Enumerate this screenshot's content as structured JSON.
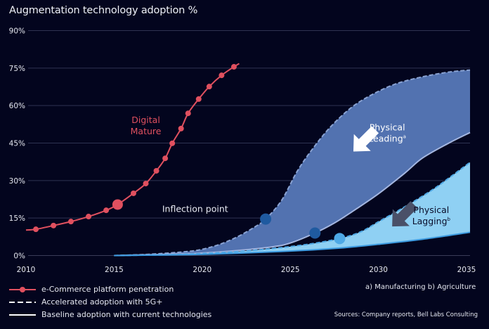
{
  "chart_data": {
    "type": "line",
    "title": "Augmentation technology adoption %",
    "xlabel": "",
    "ylabel": "",
    "xlim": [
      2010,
      2035
    ],
    "ylim": [
      0,
      90
    ],
    "x_ticks": [
      "2010",
      "2015",
      "2020",
      "2025",
      "2030",
      "2035"
    ],
    "x_tick_values": [
      2010,
      2015,
      2020,
      2025,
      2030,
      2035
    ],
    "y_ticks": [
      "0%",
      "15%",
      "30%",
      "45%",
      "60%",
      "75%",
      "90%"
    ],
    "y_tick_values": [
      0,
      15,
      30,
      45,
      60,
      75,
      90
    ],
    "grid": true,
    "series": [
      {
        "name": "e-Commerce platform penetration",
        "style": "line-markers",
        "color": "#e0505f",
        "x": [
          2010.56,
          2011.56,
          2012.55,
          2013.55,
          2014.55,
          2015.2,
          2016.1,
          2016.8,
          2017.4,
          2017.9,
          2018.3,
          2018.8,
          2019.2,
          2019.8,
          2020.4,
          2021.1,
          2021.8
        ],
        "y": [
          10.5,
          12.0,
          13.6,
          15.6,
          18.1,
          20.4,
          24.9,
          28.8,
          33.9,
          38.9,
          44.9,
          50.8,
          56.9,
          62.6,
          67.6,
          72.1,
          75.5
        ],
        "line_start": [
          2010,
          10.2
        ],
        "line_end": [
          2022.1,
          76.8
        ],
        "highlight_index": 5
      },
      {
        "name": "Physical Leading - Accelerated adoption with 5G+",
        "style": "dashed",
        "color": "#8aa3d3",
        "x": [
          2015,
          2017,
          2019,
          2020,
          2021,
          2022,
          2023,
          2023.6,
          2024.5,
          2025.4,
          2026.3,
          2027.3,
          2028.5,
          2029.7,
          2031,
          2032.5,
          2034,
          2035.2
        ],
        "y": [
          0,
          0.5,
          1.5,
          2.5,
          4.5,
          7.5,
          11.5,
          14.6,
          22,
          33.8,
          43,
          51.6,
          59.4,
          64.6,
          68.7,
          71.5,
          73.4,
          74.2
        ]
      },
      {
        "name": "Physical Leading - Baseline adoption with current technologies",
        "style": "solid",
        "color": "#a4b6e0",
        "x": [
          2015,
          2018,
          2020,
          2022,
          2024,
          2025,
          2026.4,
          2027.5,
          2028.5,
          2030,
          2031.5,
          2032.5,
          2034,
          2035.2
        ],
        "y": [
          0,
          0.5,
          1,
          2,
          3.5,
          5,
          9,
          13,
          17.5,
          24.7,
          33,
          39,
          45,
          49.2
        ]
      },
      {
        "name": "Physical Lagging - Accelerated adoption with 5G+",
        "style": "dashed",
        "color": "#4ea9e6",
        "x": [
          2015,
          2018,
          2020,
          2022,
          2024,
          2026,
          2027.8,
          2029,
          2030,
          2031.5,
          2033,
          2034,
          2035.2
        ],
        "y": [
          0,
          0.3,
          0.8,
          1.6,
          2.8,
          4.5,
          6.8,
          9.5,
          13.5,
          19.5,
          26,
          31,
          37.3
        ]
      },
      {
        "name": "Physical Lagging - Baseline adoption with current technologies",
        "style": "solid",
        "color": "#3d9be0",
        "x": [
          2015,
          2020,
          2025,
          2027.8,
          2030,
          2032.5,
          2035.2
        ],
        "y": [
          0,
          0.5,
          1.8,
          3,
          4.5,
          6.5,
          9.3
        ]
      }
    ],
    "bands": [
      {
        "name": "Physical Leading",
        "superscript": "a",
        "fill": "#5272b0",
        "upper": "Physical Leading - Accelerated adoption with 5G+",
        "lower": "Physical Leading - Baseline adoption with current technologies"
      },
      {
        "name": "Physical Lagging",
        "superscript": "b",
        "fill": "#8fd0f3",
        "upper": "Physical Lagging - Accelerated adoption with 5G+",
        "lower": "Physical Lagging - Baseline adoption with current technologies"
      }
    ],
    "markers": [
      {
        "label": "Inflection point",
        "x": 2023.6,
        "y": 14.6,
        "color": "#1f5aa0"
      },
      {
        "label": "",
        "x": 2026.4,
        "y": 9.0,
        "color": "#1f5aa0"
      },
      {
        "label": "",
        "x": 2027.8,
        "y": 6.8,
        "color": "#4ea9e6"
      }
    ],
    "annotations": [
      {
        "text_lines": [
          "Digital",
          "Mature"
        ],
        "color": "#e0505f",
        "x": 2016.8,
        "y": 53
      },
      {
        "text_lines": [
          "Physical",
          "Leading"
        ],
        "superscript": "a",
        "color": "#ffffff",
        "x": 2030.5,
        "y": 50
      },
      {
        "text_lines": [
          "Physical",
          "Lagging"
        ],
        "superscript": "b",
        "color": "#0a0d2a",
        "x": 2033,
        "y": 17
      },
      {
        "text_lines": [
          "Inflection point"
        ],
        "color": "#e6e8f0",
        "x": 2019.6,
        "y": 17.5
      }
    ],
    "arrows": [
      {
        "name": "leading-arrow",
        "color": "#ffffff",
        "direction": "up-left",
        "x": 2029.2,
        "y": 46
      },
      {
        "name": "lagging-arrow",
        "color": "#4a5068",
        "direction": "up-left",
        "x": 2031.4,
        "y": 16
      }
    ],
    "legend": [
      {
        "label": "e-Commerce platform penetration",
        "style": "line-markers",
        "color": "#e0505f"
      },
      {
        "label": "Accelerated adoption with 5G+",
        "style": "dashed",
        "color": "#ffffff"
      },
      {
        "label": "Baseline adoption with current technologies",
        "style": "solid",
        "color": "#ffffff"
      }
    ],
    "legend_position": "bottom-left"
  },
  "notes": {
    "footnotes": "a)  Manufacturing    b) Agriculture",
    "source": "Sources: Company reports, Bell Labs Consulting"
  }
}
